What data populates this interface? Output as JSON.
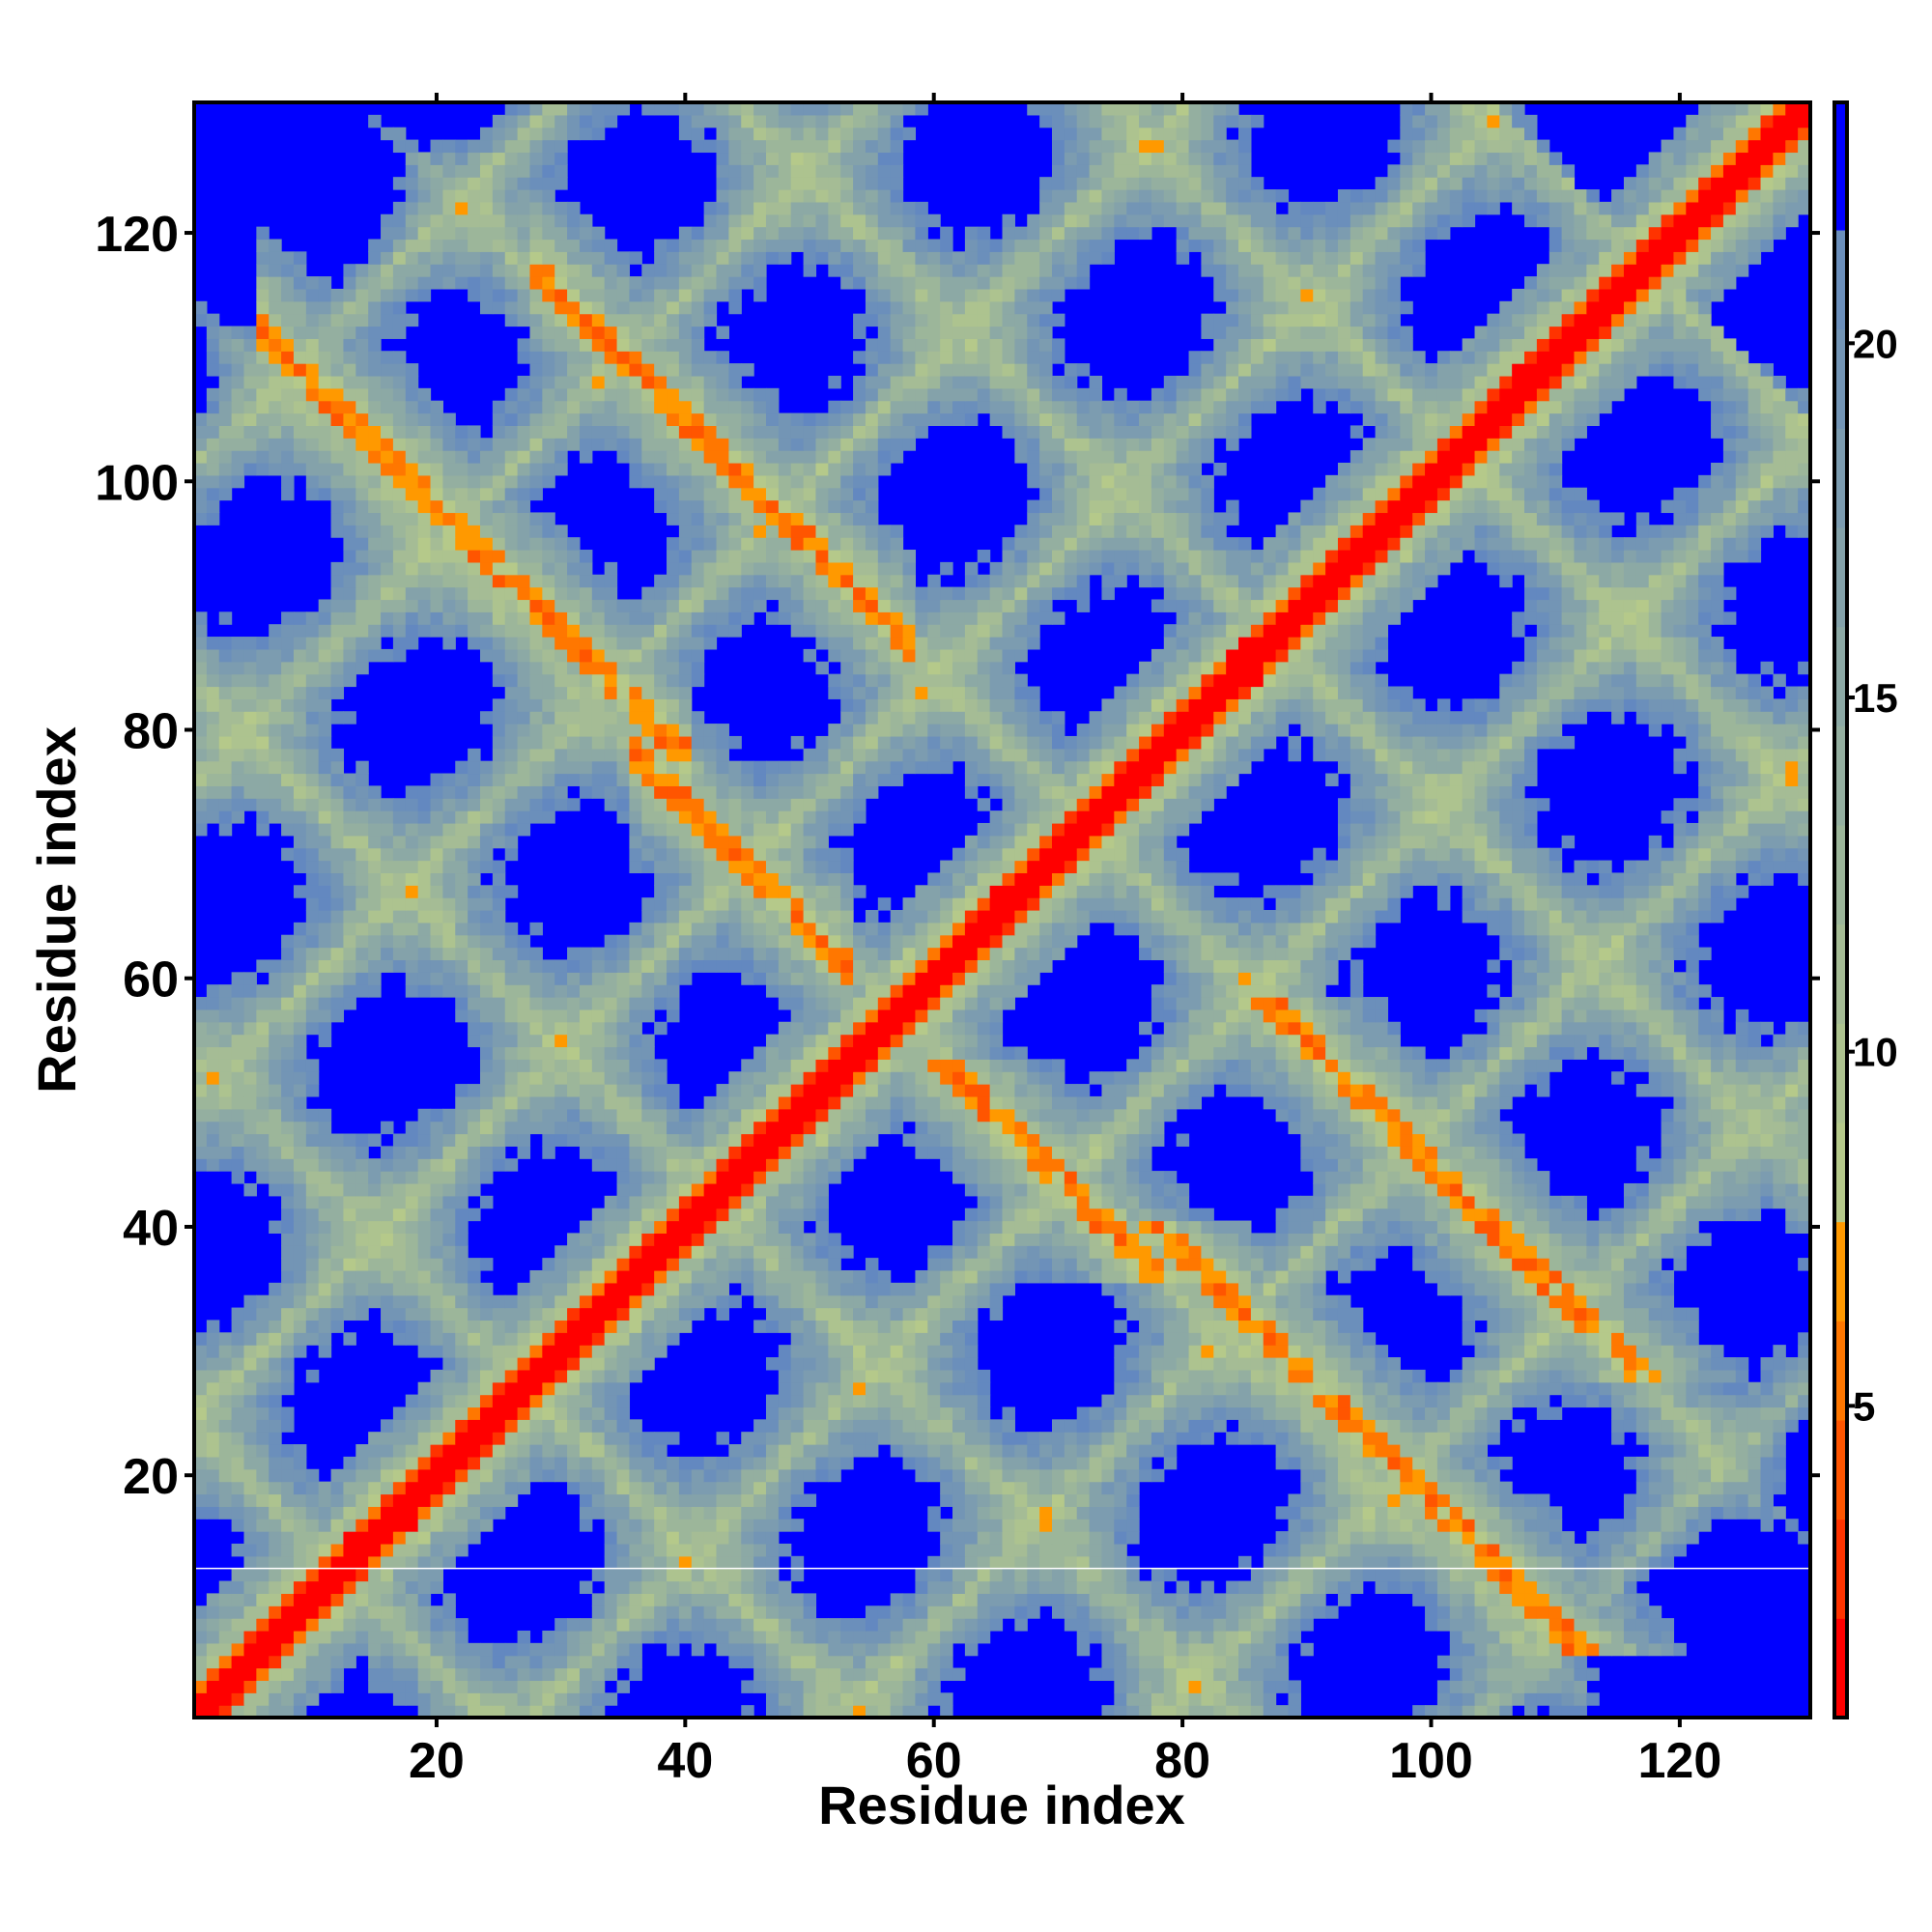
{
  "chart_data": {
    "type": "heatmap",
    "title": "",
    "xlabel": "Residue index",
    "ylabel": "Residue index",
    "xlim": [
      0.5,
      130.5
    ],
    "ylim": [
      0.5,
      130.5
    ],
    "n_residues": 130,
    "x_ticks": [
      20,
      40,
      60,
      80,
      100,
      120
    ],
    "y_ticks": [
      20,
      40,
      60,
      80,
      100,
      120
    ],
    "x_tick_labels": [
      "20",
      "40",
      "60",
      "80",
      "100",
      "120"
    ],
    "y_tick_labels": [
      "20",
      "40",
      "60",
      "80",
      "100",
      "120"
    ],
    "colorbar": {
      "range": [
        0.6,
        23.4
      ],
      "ticks": [
        5,
        10,
        15,
        20
      ],
      "tick_labels": [
        "5",
        "10",
        "15",
        "20"
      ],
      "levels": [
        {
          "max": 2.6,
          "color": "#ff0000"
        },
        {
          "max": 4.0,
          "color": "#ff3300"
        },
        {
          "max": 5.3,
          "color": "#ff5500"
        },
        {
          "max": 6.7,
          "color": "#ff7700"
        },
        {
          "max": 8.0,
          "color": "#ff9900"
        },
        {
          "max": 22.0,
          "color_from": "#b5c98a",
          "color_to": "#6388c0"
        },
        {
          "max": 99,
          "color": "#0000ff"
        }
      ]
    },
    "description_model": {
      "diagonal_contact": true,
      "antiparallel_contacts": [
        {
          "residue_sum": 118,
          "from": 8,
          "to": 38
        },
        {
          "residue_sum": 145,
          "from": 30,
          "to": 56
        },
        {
          "residue_sum": 114,
          "from": 38,
          "to": 51
        }
      ],
      "lattice_sum_period": 30,
      "lattice_diff_period": 25.5,
      "lattice_sum_phase": 69.5,
      "lattice_diff_phase": 11.5
    },
    "artifact_white_line_at_residue": 12.5
  }
}
